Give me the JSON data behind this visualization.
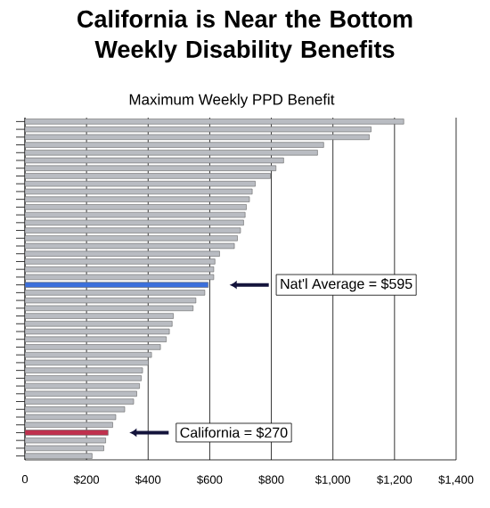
{
  "chart_data": {
    "type": "bar",
    "orientation": "horizontal",
    "title": "California is Near the Bottom Weekly Disability Benefits",
    "subtitle": "Maximum Weekly PPD Benefit",
    "categories": [
      null,
      null,
      null,
      null,
      null,
      null,
      null,
      null,
      null,
      null,
      null,
      null,
      null,
      null,
      null,
      null,
      null,
      null,
      null,
      null,
      null,
      null,
      null,
      null,
      null,
      null,
      null,
      null,
      null,
      null,
      null,
      null,
      null,
      null,
      null,
      null,
      null,
      null,
      null,
      null,
      null,
      null,
      null,
      null
    ],
    "values": [
      1230,
      1124,
      1118,
      970,
      950,
      840,
      815,
      797,
      748,
      738,
      729,
      719,
      715,
      710,
      700,
      690,
      680,
      632,
      617,
      613,
      613,
      595,
      584,
      555,
      546,
      482,
      478,
      469,
      459,
      440,
      411,
      401,
      382,
      378,
      372,
      363,
      353,
      324,
      295,
      285,
      270,
      262,
      256,
      218
    ],
    "colors": [
      "#b9bcc2",
      "#b9bcc2",
      "#b9bcc2",
      "#b9bcc2",
      "#b9bcc2",
      "#b9bcc2",
      "#b9bcc2",
      "#b9bcc2",
      "#b9bcc2",
      "#b9bcc2",
      "#b9bcc2",
      "#b9bcc2",
      "#b9bcc2",
      "#b9bcc2",
      "#b9bcc2",
      "#b9bcc2",
      "#b9bcc2",
      "#b9bcc2",
      "#b9bcc2",
      "#b9bcc2",
      "#b9bcc2",
      "#3b6fdc",
      "#b9bcc2",
      "#b9bcc2",
      "#b9bcc2",
      "#b9bcc2",
      "#b9bcc2",
      "#b9bcc2",
      "#b9bcc2",
      "#b9bcc2",
      "#b9bcc2",
      "#b9bcc2",
      "#b9bcc2",
      "#b9bcc2",
      "#b9bcc2",
      "#b9bcc2",
      "#b9bcc2",
      "#b9bcc2",
      "#b9bcc2",
      "#b9bcc2",
      "#c0314e",
      "#b9bcc2",
      "#b9bcc2",
      "#b9bcc2"
    ],
    "xlim": [
      0,
      1400
    ],
    "xticks": [
      0,
      {
        "value": 200,
        "label": "$200"
      },
      {
        "value": 400,
        "label": "$400"
      },
      {
        "value": 600,
        "label": "$600"
      },
      {
        "value": 800,
        "label": "$800"
      },
      {
        "value": 1000,
        "label": "$1,000"
      },
      {
        "value": 1200,
        "label": "$1,200"
      },
      {
        "value": 1400,
        "label": "$1,400"
      }
    ],
    "grid": "x",
    "annotations": [
      "Nat'l Average = $595",
      "California = $270"
    ]
  }
}
